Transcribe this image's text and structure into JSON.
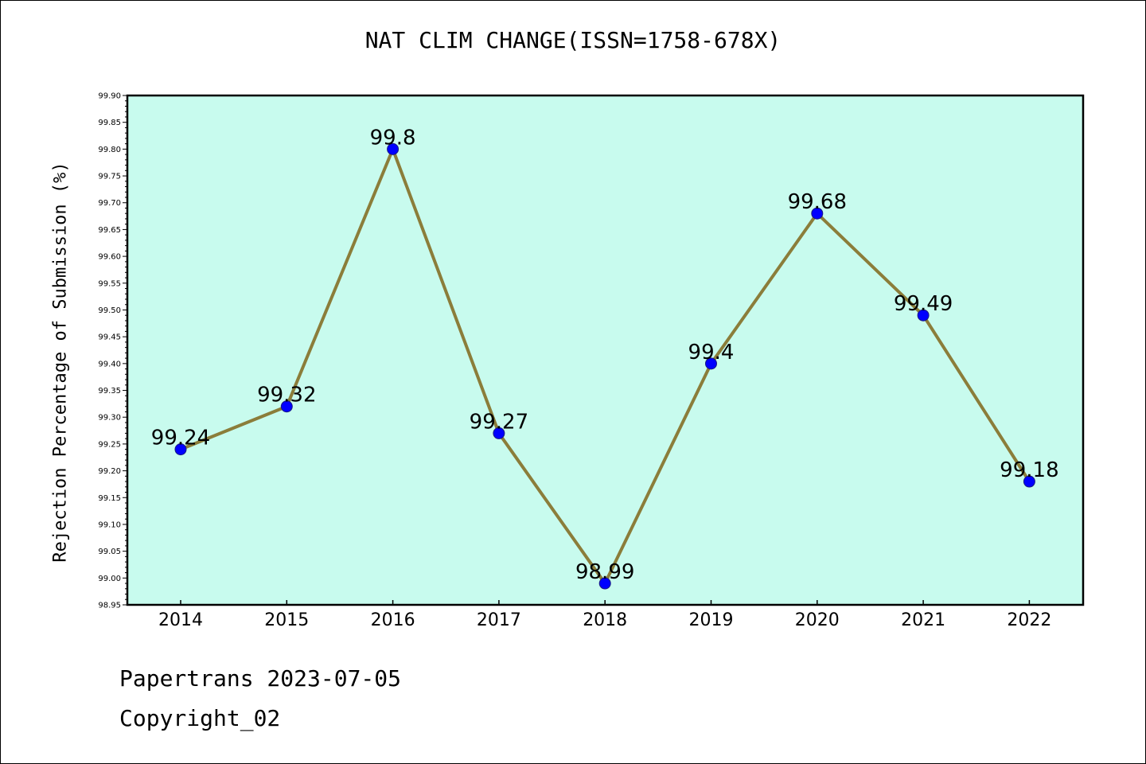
{
  "chart_data": {
    "type": "line",
    "title": "NAT CLIM CHANGE(ISSN=1758-678X)",
    "xlabel": "",
    "ylabel": "Rejection Percentage of Submission (%)",
    "categories": [
      "2014",
      "2015",
      "2016",
      "2017",
      "2018",
      "2019",
      "2020",
      "2021",
      "2022"
    ],
    "series": [
      {
        "values": [
          99.24,
          99.32,
          99.8,
          99.27,
          98.99,
          99.4,
          99.68,
          99.49,
          99.18
        ],
        "data_labels": [
          "99.24",
          "99.32",
          "99.8",
          "99.27",
          "98.99",
          "99.4",
          "99.68",
          "99.49",
          "99.18"
        ],
        "line_color": "#8b7d3a",
        "marker_color": "#0000ff"
      }
    ],
    "ylim": [
      98.95,
      99.9
    ],
    "yticks": [
      "98.95",
      "99.00",
      "99.05",
      "99.10",
      "99.15",
      "99.20",
      "99.25",
      "99.30",
      "99.35",
      "99.40",
      "99.45",
      "99.50",
      "99.55",
      "99.60",
      "99.65",
      "99.70",
      "99.75",
      "99.80",
      "99.85",
      "99.90"
    ],
    "plot_background": "#c8fbee",
    "grid": false,
    "legend": "none"
  },
  "footer": {
    "line1": "Papertrans 2023-07-05",
    "line2": "Copyright_02"
  }
}
